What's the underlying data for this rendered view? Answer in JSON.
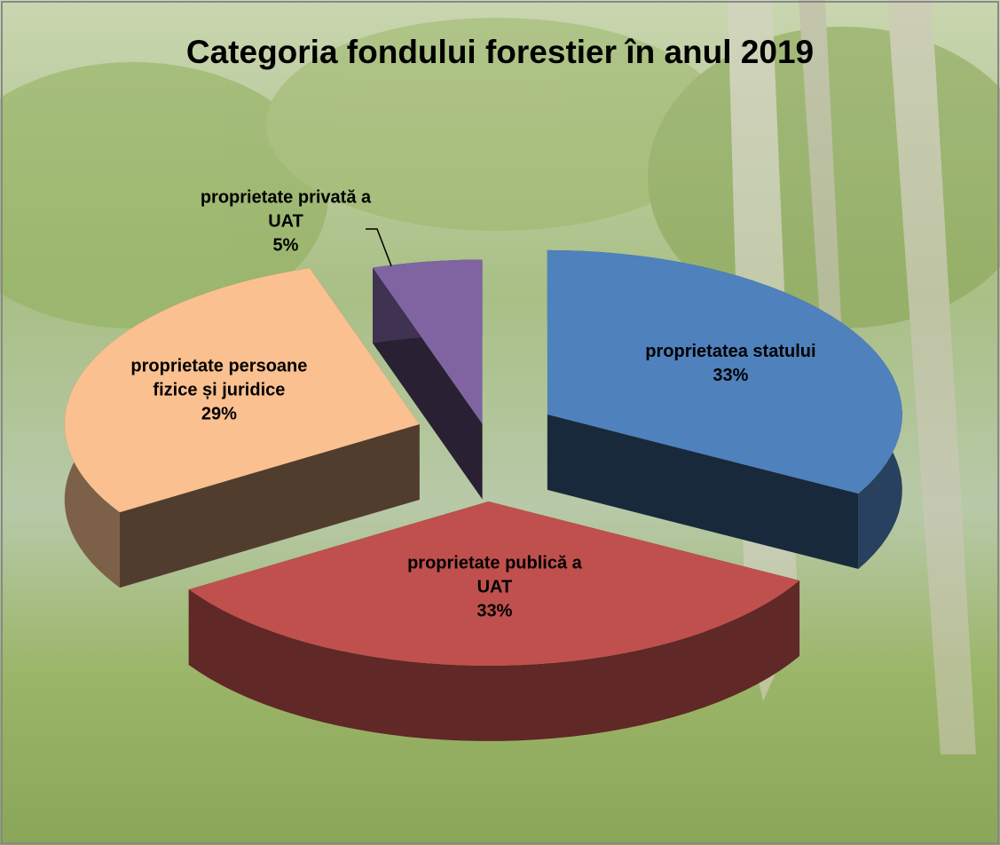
{
  "chart_data": {
    "type": "pie3d",
    "title": "Categoria fondului forestier în anul 2019",
    "categories": [
      "proprietatea statului",
      "proprietate publică a UAT",
      "proprietate persoane fizice și juridice",
      "proprietate privată a UAT"
    ],
    "values": [
      33,
      33,
      29,
      5
    ],
    "value_labels": [
      "33%",
      "33%",
      "29%",
      "5%"
    ],
    "colors": [
      "#4f81bd",
      "#c0504d",
      "#fac090",
      "#8064a2"
    ]
  }
}
